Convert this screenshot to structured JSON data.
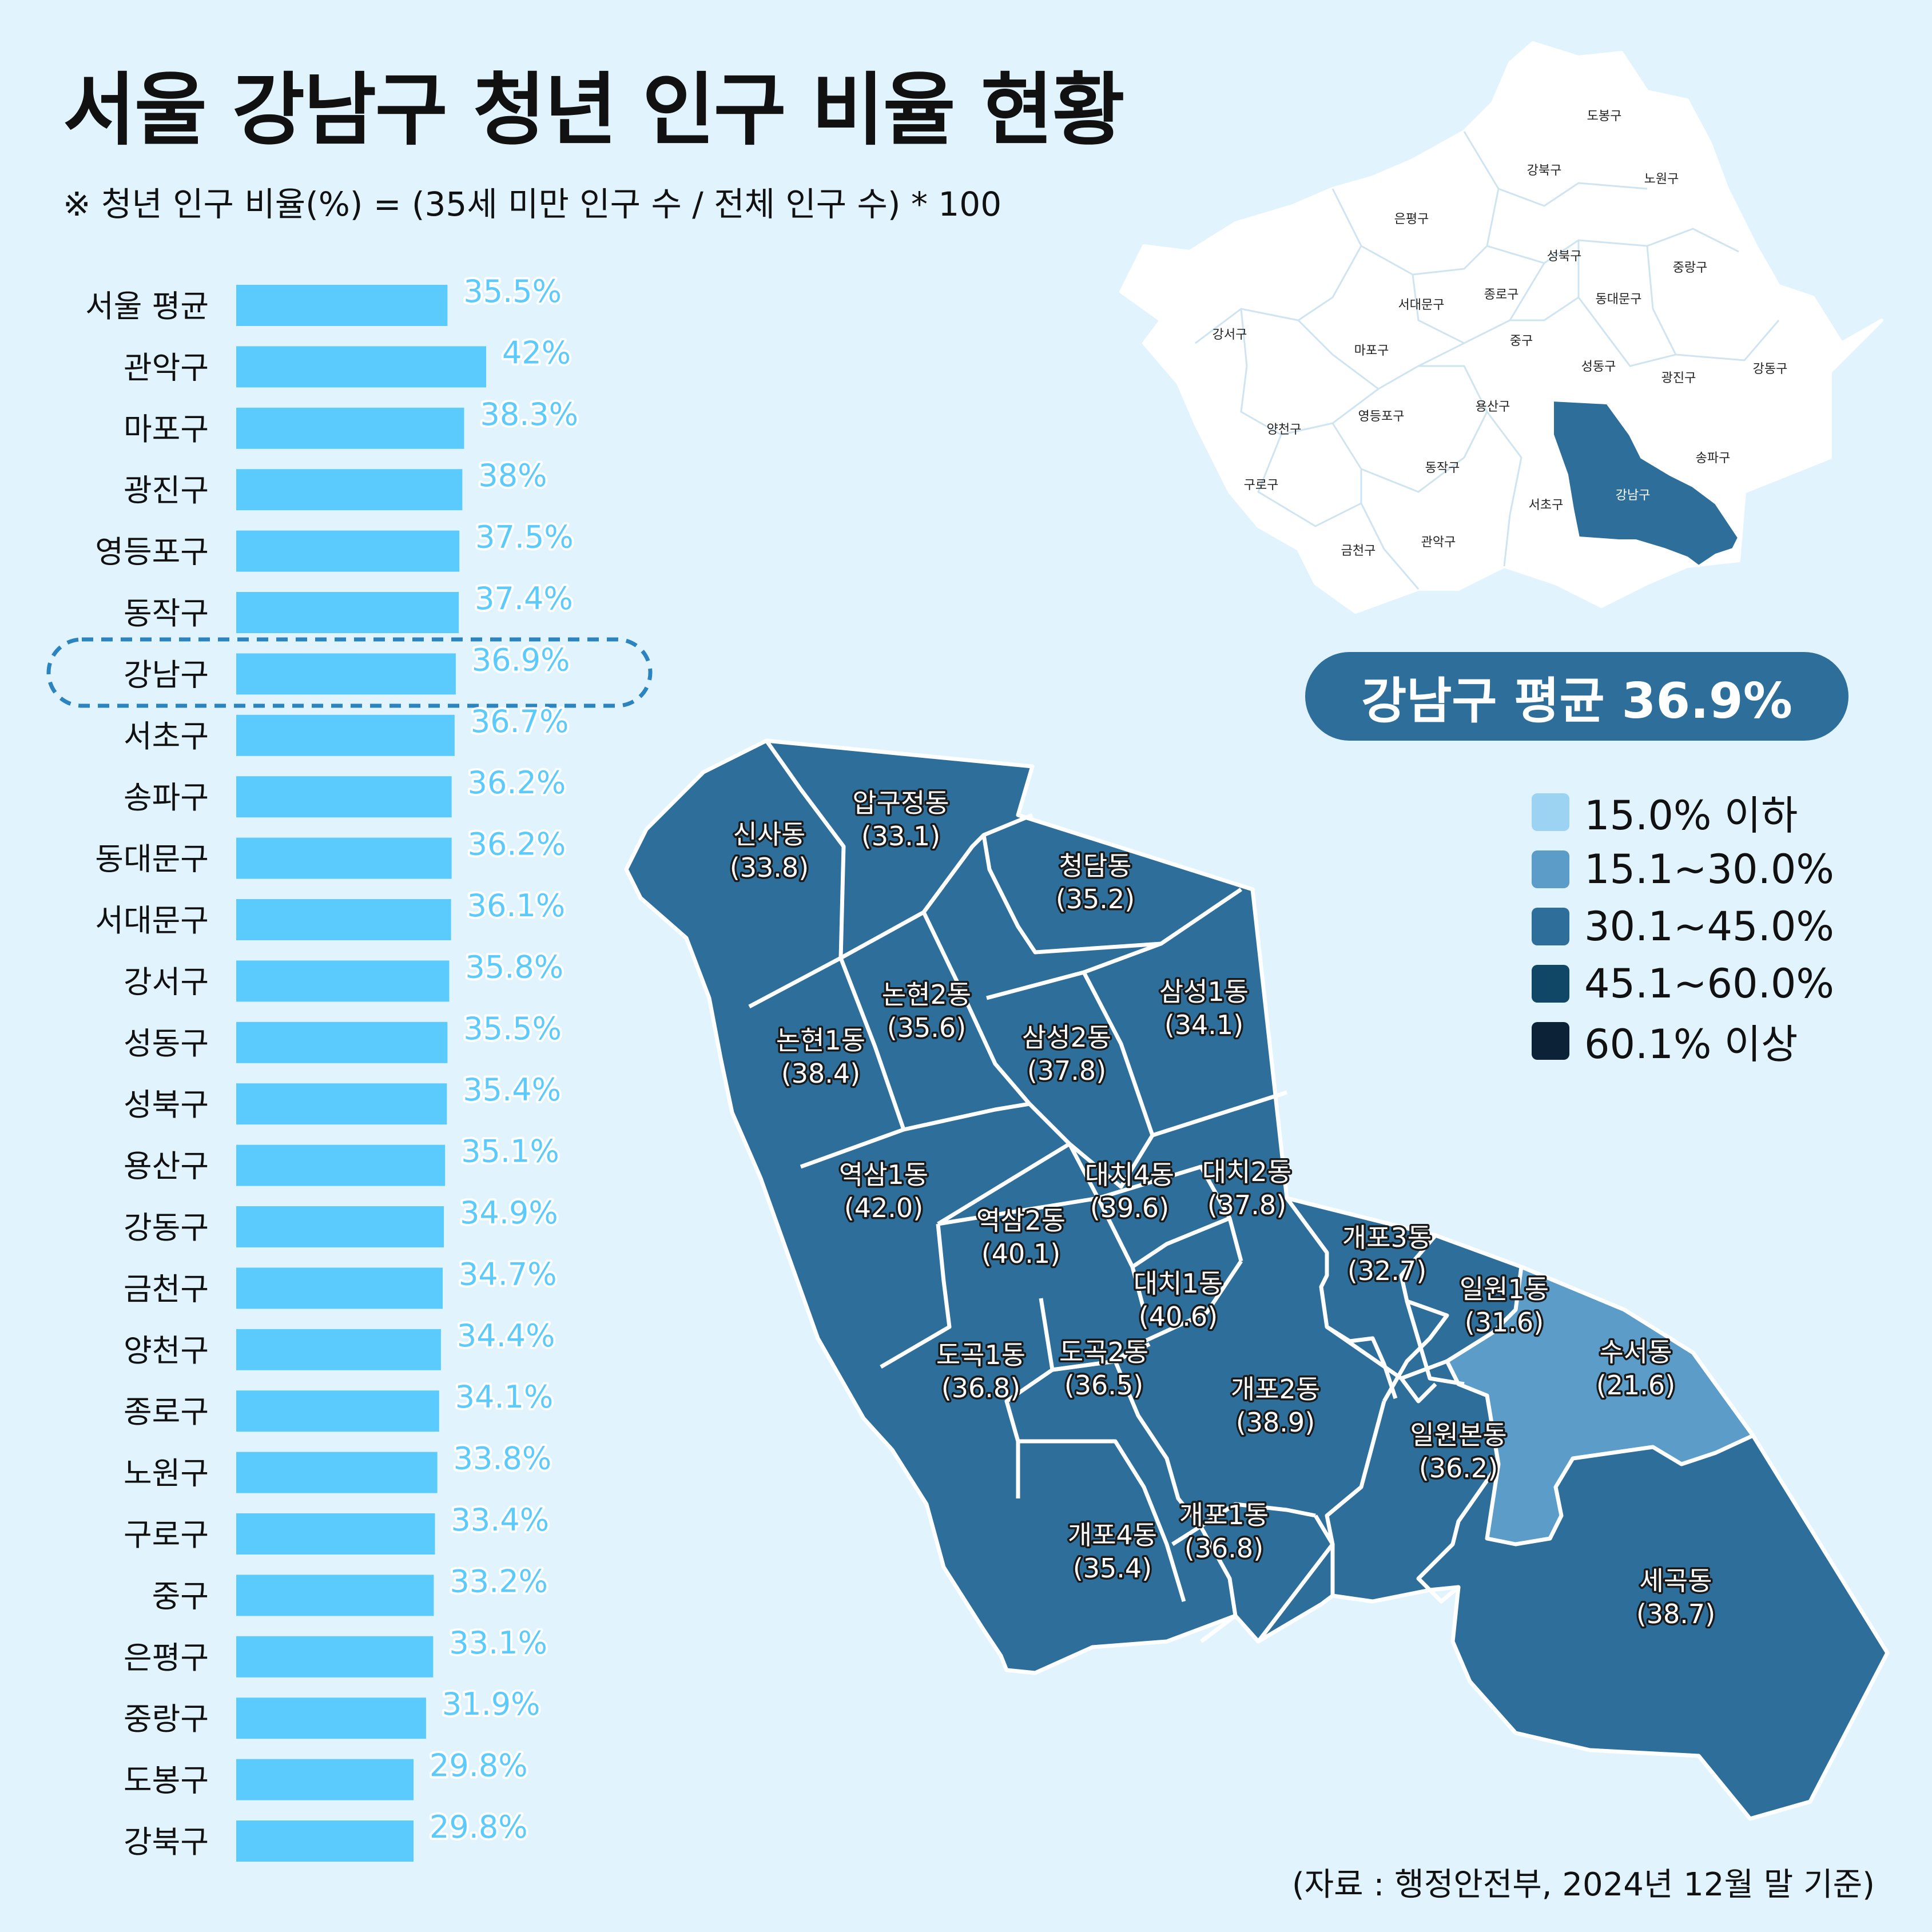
{
  "title": "서울 강남구 청년 인구 비율 현황",
  "subtitle": "※ 청년 인구 비율(%) = (35세 미만 인구 수 / 전체 인구 수) * 100",
  "source": "(자료 : 행정안전부, 2024년 12월 말 기준)",
  "average_badge": "강남구 평균 36.9%",
  "highlight": "강남구",
  "colors": {
    "background": "#e1f4fd",
    "bar": "#5bcbfd",
    "bar_label": "#5bcbfd",
    "highlight_outline": "#2b84c0",
    "badge": "#2d6e9a",
    "map_white": "#ffffff",
    "map_gangnam": "#2d6e9a"
  },
  "legend": [
    {
      "label": "15.0% 이하",
      "color": "#9cd3f2"
    },
    {
      "label": "15.1~30.0%",
      "color": "#5b9cc8"
    },
    {
      "label": "30.1~45.0%",
      "color": "#2d6e9a"
    },
    {
      "label": "45.1~60.0%",
      "color": "#114766"
    },
    {
      "label": "60.1% 이상",
      "color": "#0b2237"
    }
  ],
  "seoul_map_labels": [
    "도봉구",
    "강북구",
    "노원구",
    "은평구",
    "성북구",
    "중랑구",
    "종로구",
    "서대문구",
    "동대문구",
    "강서구",
    "마포구",
    "중구",
    "성동구",
    "광진구",
    "강동구",
    "양천구",
    "영등포구",
    "용산구",
    "송파구",
    "동작구",
    "구로구",
    "서초구",
    "강남구",
    "금천구",
    "관악구"
  ],
  "chart_data": [
    {
      "type": "bar",
      "orientation": "horizontal",
      "categories": [
        "서울 평균",
        "관악구",
        "마포구",
        "광진구",
        "영등포구",
        "동작구",
        "강남구",
        "서초구",
        "송파구",
        "동대문구",
        "서대문구",
        "강서구",
        "성동구",
        "성북구",
        "용산구",
        "강동구",
        "금천구",
        "양천구",
        "종로구",
        "노원구",
        "구로구",
        "중구",
        "은평구",
        "중랑구",
        "도봉구",
        "강북구"
      ],
      "values": [
        35.5,
        42,
        38.3,
        38,
        37.5,
        37.4,
        36.9,
        36.7,
        36.2,
        36.2,
        36.1,
        35.8,
        35.5,
        35.4,
        35.1,
        34.9,
        34.7,
        34.4,
        34.1,
        33.8,
        33.4,
        33.2,
        33.1,
        31.9,
        29.8,
        29.8
      ],
      "value_labels": [
        "35.5%",
        "42%",
        "38.3%",
        "38%",
        "37.5%",
        "37.4%",
        "36.9%",
        "36.7%",
        "36.2%",
        "36.2%",
        "36.1%",
        "35.8%",
        "35.5%",
        "35.4%",
        "35.1%",
        "34.9%",
        "34.7%",
        "34.4%",
        "34.1%",
        "33.8%",
        "33.4%",
        "33.2%",
        "33.1%",
        "31.9%",
        "29.8%",
        "29.8%"
      ],
      "xlim": [
        0,
        42
      ]
    },
    {
      "type": "choropleth",
      "regions": [
        {
          "name": "신사동",
          "value": "33.8",
          "label": "(33.8)"
        },
        {
          "name": "압구정동",
          "value": "33.1",
          "label": "(33.1)"
        },
        {
          "name": "청담동",
          "value": "35.2",
          "label": "(35.2)"
        },
        {
          "name": "논현2동",
          "value": "35.6",
          "label": "(35.6)"
        },
        {
          "name": "삼성1동",
          "value": "34.1",
          "label": "(34.1)"
        },
        {
          "name": "논현1동",
          "value": "38.4",
          "label": "(38.4)"
        },
        {
          "name": "삼성2동",
          "value": "37.8",
          "label": "(37.8)"
        },
        {
          "name": "역삼1동",
          "value": "42.0",
          "label": "(42.0)"
        },
        {
          "name": "대치4동",
          "value": "39.6",
          "label": "(39.6)"
        },
        {
          "name": "대치2동",
          "value": "37.8",
          "label": "(37.8)"
        },
        {
          "name": "역삼2동",
          "value": "40.1",
          "label": "(40.1)"
        },
        {
          "name": "개포3동",
          "value": "32.7",
          "label": "(32.7)"
        },
        {
          "name": "대치1동",
          "value": "40.6",
          "label": "(40.6)"
        },
        {
          "name": "일원1동",
          "value": "31.6",
          "label": "(31.6)"
        },
        {
          "name": "도곡1동",
          "value": "36.8",
          "label": "(36.8)"
        },
        {
          "name": "도곡2동",
          "value": "36.5",
          "label": "(36.5)"
        },
        {
          "name": "수서동",
          "value": "21.6",
          "label": "(21.6)"
        },
        {
          "name": "개포2동",
          "value": "38.9",
          "label": "(38.9)"
        },
        {
          "name": "일원본동",
          "value": "36.2",
          "label": "(36.2)"
        },
        {
          "name": "개포4동",
          "value": "35.4",
          "label": "(35.4)"
        },
        {
          "name": "개포1동",
          "value": "36.8",
          "label": "(36.8)"
        },
        {
          "name": "세곡동",
          "value": "38.7",
          "label": "(38.7)"
        }
      ]
    }
  ]
}
